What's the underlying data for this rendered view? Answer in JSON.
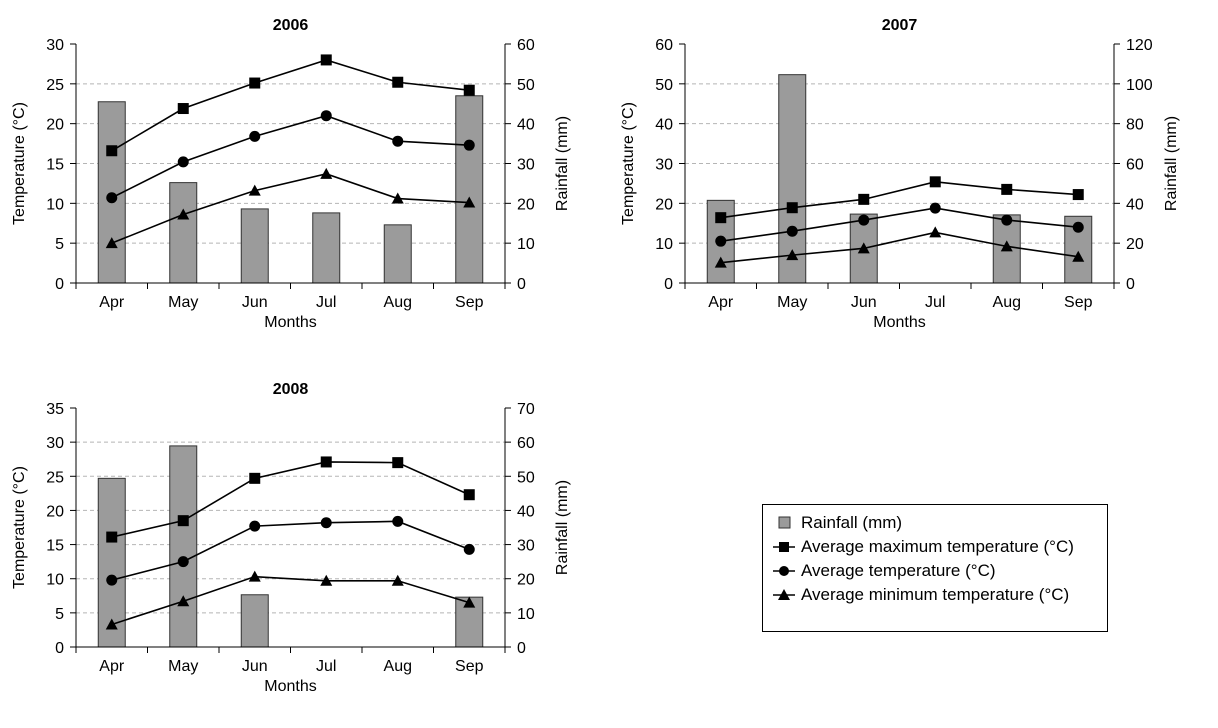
{
  "chart_data": [
    {
      "type": "bar+line",
      "title": "2006",
      "xlabel": "Months",
      "ylabel_left": "Temperature (°C)",
      "ylabel_right": "Rainfall (mm)",
      "categories": [
        "Apr",
        "May",
        "Jun",
        "Jul",
        "Aug",
        "Sep"
      ],
      "ylim_left": [
        0,
        30
      ],
      "yticks_left": [
        0,
        5,
        10,
        15,
        20,
        25,
        30
      ],
      "ylim_right": [
        0,
        60
      ],
      "yticks_right": [
        0,
        10,
        20,
        30,
        40,
        50,
        60
      ],
      "grid": true,
      "rainfall": [
        45.5,
        25.2,
        18.6,
        17.6,
        14.6,
        47.0
      ],
      "tmax": [
        16.6,
        21.9,
        25.1,
        28.0,
        25.2,
        24.2
      ],
      "tavg": [
        10.7,
        15.2,
        18.4,
        21.0,
        17.8,
        17.3
      ],
      "tmin": [
        5.0,
        8.6,
        11.6,
        13.7,
        10.6,
        10.1
      ]
    },
    {
      "type": "bar+line",
      "title": "2007",
      "xlabel": "Months",
      "ylabel_left": "Temperature (°C)",
      "ylabel_right": "Rainfall (mm)",
      "categories": [
        "Apr",
        "May",
        "Jun",
        "Jul",
        "Aug",
        "Sep"
      ],
      "ylim_left": [
        0,
        60
      ],
      "yticks_left": [
        0,
        10,
        20,
        30,
        40,
        50,
        60
      ],
      "ylim_right": [
        0,
        120
      ],
      "yticks_right": [
        0,
        20,
        40,
        60,
        80,
        100,
        120
      ],
      "grid": true,
      "rainfall": [
        41.5,
        104.6,
        34.6,
        0,
        34.2,
        33.5
      ],
      "tmax": [
        16.4,
        18.9,
        21.0,
        25.4,
        23.5,
        22.2
      ],
      "tavg": [
        10.5,
        13.0,
        15.8,
        18.8,
        15.8,
        14.0
      ],
      "tmin": [
        5.1,
        7.0,
        8.7,
        12.7,
        9.2,
        6.6
      ]
    },
    {
      "type": "bar+line",
      "title": "2008",
      "xlabel": "Months",
      "ylabel_left": "Temperature (°C)",
      "ylabel_right": "Rainfall (mm)",
      "categories": [
        "Apr",
        "May",
        "Jun",
        "Jul",
        "Aug",
        "Sep"
      ],
      "ylim_left": [
        0,
        35
      ],
      "yticks_left": [
        0,
        5,
        10,
        15,
        20,
        25,
        30,
        35
      ],
      "ylim_right": [
        0,
        70
      ],
      "yticks_right": [
        0,
        10,
        20,
        30,
        40,
        50,
        60,
        70
      ],
      "grid": true,
      "rainfall": [
        49.4,
        58.9,
        15.3,
        0,
        0,
        14.6
      ],
      "tmax": [
        16.1,
        18.5,
        24.7,
        27.1,
        27.0,
        22.3
      ],
      "tavg": [
        9.8,
        12.5,
        17.7,
        18.2,
        18.4,
        14.3
      ],
      "tmin": [
        3.3,
        6.7,
        10.3,
        9.7,
        9.7,
        6.5
      ]
    }
  ],
  "legend": {
    "rainfall": "Rainfall (mm)",
    "tmax": "Average maximum temperature (°C)",
    "tavg": "Average temperature (°C)",
    "tmin": "Average minimum temperature (°C)"
  },
  "colors": {
    "bar_fill": "#9b9b9b",
    "bar_stroke": "#333333",
    "line": "#000000",
    "grid": "#b5b5b5"
  },
  "markers": {
    "tmax": "square",
    "tavg": "circle",
    "tmin": "triangle"
  }
}
